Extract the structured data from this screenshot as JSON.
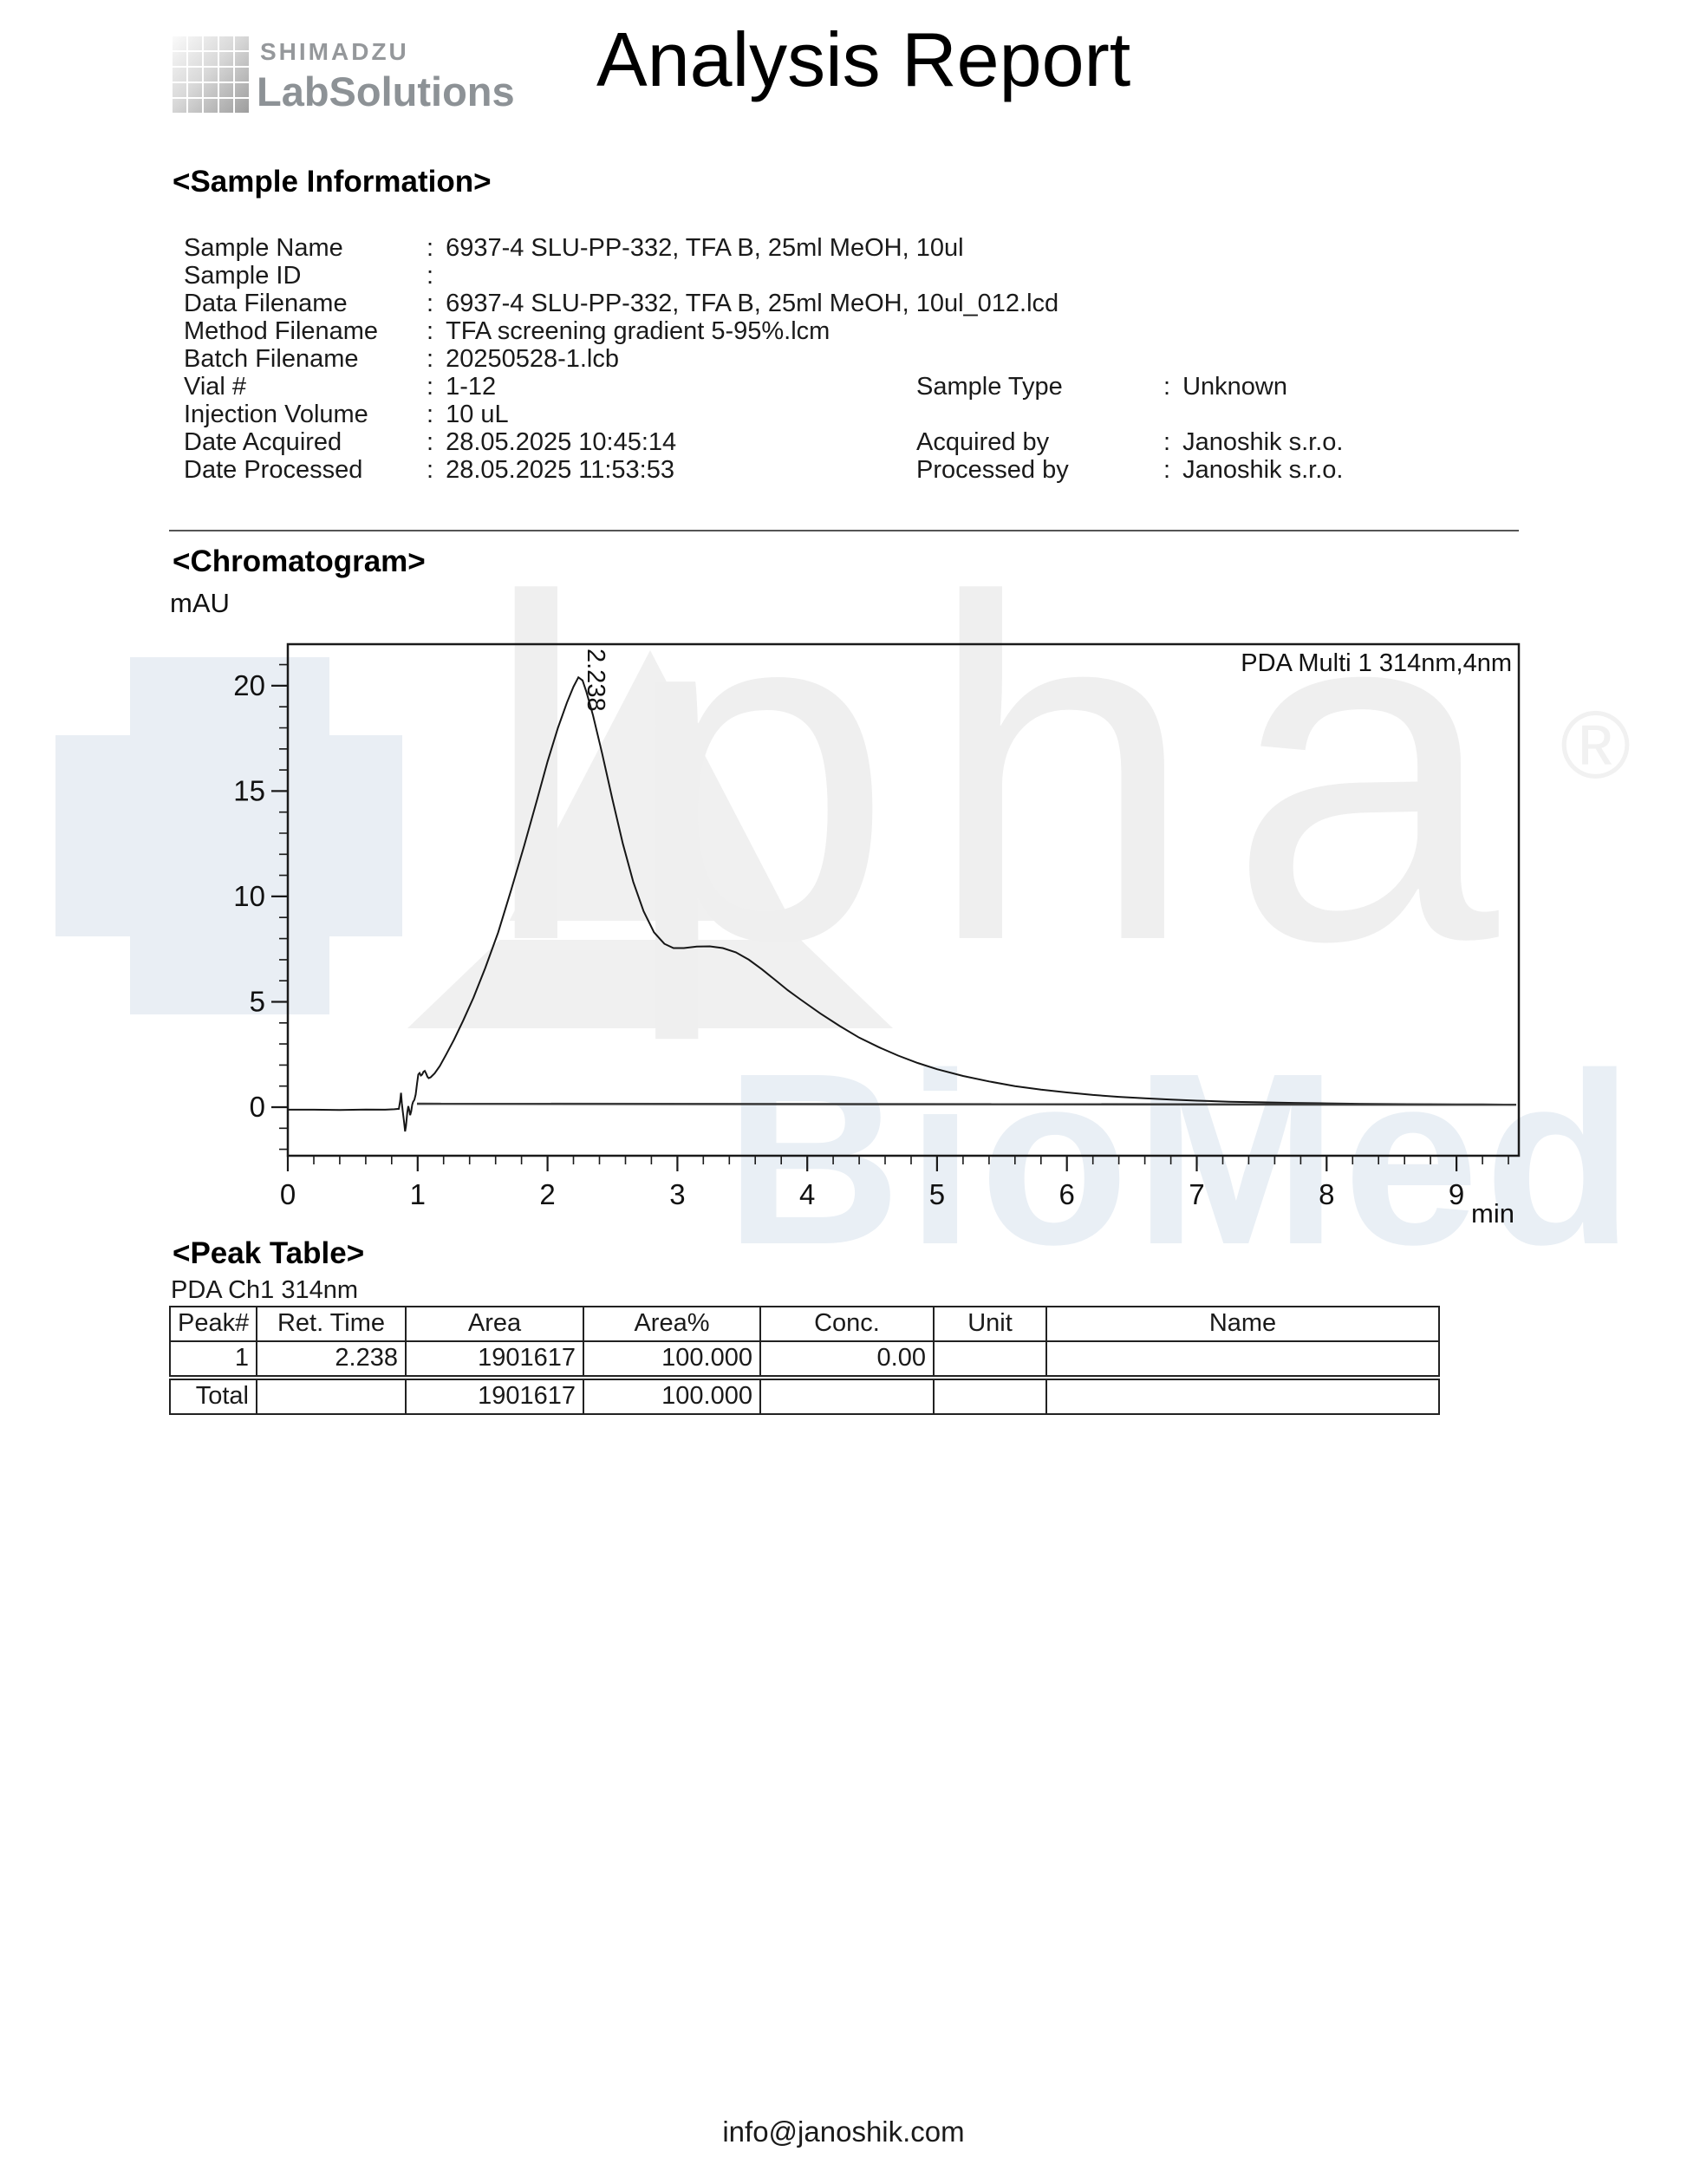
{
  "header": {
    "brand_line1": "SHIMADZU",
    "brand_line2": "LabSolutions",
    "title": "Analysis Report"
  },
  "punct": {
    "colon": ":"
  },
  "sample_information": {
    "section_title": "<Sample Information>",
    "rows": [
      {
        "label": "Sample Name",
        "value": "6937-4 SLU-PP-332, TFA B, 25ml MeOH, 10ul"
      },
      {
        "label": "Sample ID",
        "value": ""
      },
      {
        "label": "Data Filename",
        "value": "6937-4 SLU-PP-332, TFA B, 25ml MeOH, 10ul_012.lcd"
      },
      {
        "label": "Method Filename",
        "value": "TFA screening gradient 5-95%.lcm"
      },
      {
        "label": "Batch Filename",
        "value": "20250528-1.lcb"
      },
      {
        "label": "Vial #",
        "value": "1-12",
        "label2": "Sample Type",
        "value2": "Unknown"
      },
      {
        "label": "Injection Volume",
        "value": "10 uL"
      },
      {
        "label": "Date Acquired",
        "value": "28.05.2025 10:45:14",
        "label2": "Acquired by",
        "value2": "Janoshik s.r.o."
      },
      {
        "label": "Date Processed",
        "value": "28.05.2025 11:53:53",
        "label2": "Processed by",
        "value2": "Janoshik s.r.o."
      }
    ]
  },
  "chromatogram": {
    "section_title": "<Chromatogram>",
    "y_axis_unit": "mAU",
    "x_axis_unit": "min",
    "channel_label": "PDA Multi 1 314nm,4nm",
    "peak_label": "2.238"
  },
  "chart_data": {
    "type": "line",
    "title": "PDA Multi 1 314nm,4nm",
    "xlabel": "min",
    "ylabel": "mAU",
    "xlim": [
      0,
      9.48
    ],
    "ylim": [
      -2.3,
      21.97
    ],
    "x_major_ticks": [
      0,
      1,
      2,
      3,
      4,
      5,
      6,
      7,
      8,
      9
    ],
    "x_minor_step": 0.2,
    "y_major_ticks": [
      0,
      5,
      10,
      15,
      20
    ],
    "y_minor_step": 1,
    "grid": false,
    "legend_position": "none",
    "peaks": [
      {
        "ret_time": 2.238,
        "apex_mau": 20.4
      }
    ],
    "series": [
      {
        "name": "signal",
        "points": [
          [
            0,
            -0.12
          ],
          [
            0.2,
            -0.12
          ],
          [
            0.4,
            -0.13
          ],
          [
            0.6,
            -0.11
          ],
          [
            0.75,
            -0.12
          ],
          [
            0.82,
            -0.1
          ],
          [
            0.855,
            -0.08
          ],
          [
            0.865,
            0.3
          ],
          [
            0.872,
            0.68
          ],
          [
            0.878,
            0.2
          ],
          [
            0.885,
            -0.2
          ],
          [
            0.895,
            -0.7
          ],
          [
            0.903,
            -1.15
          ],
          [
            0.91,
            -0.9
          ],
          [
            0.92,
            -0.25
          ],
          [
            0.928,
            0.05
          ],
          [
            0.935,
            -0.15
          ],
          [
            0.942,
            -0.38
          ],
          [
            0.95,
            -0.2
          ],
          [
            0.958,
            0.12
          ],
          [
            0.965,
            0.25
          ],
          [
            0.975,
            0.35
          ],
          [
            0.985,
            0.6
          ],
          [
            0.995,
            1.1
          ],
          [
            1.005,
            1.55
          ],
          [
            1.015,
            1.62
          ],
          [
            1.025,
            1.5
          ],
          [
            1.035,
            1.55
          ],
          [
            1.045,
            1.68
          ],
          [
            1.055,
            1.72
          ],
          [
            1.065,
            1.6
          ],
          [
            1.075,
            1.45
          ],
          [
            1.085,
            1.38
          ],
          [
            1.1,
            1.42
          ],
          [
            1.13,
            1.6
          ],
          [
            1.17,
            1.95
          ],
          [
            1.22,
            2.5
          ],
          [
            1.28,
            3.2
          ],
          [
            1.35,
            4.1
          ],
          [
            1.43,
            5.2
          ],
          [
            1.52,
            6.6
          ],
          [
            1.62,
            8.3
          ],
          [
            1.72,
            10.3
          ],
          [
            1.82,
            12.4
          ],
          [
            1.92,
            14.6
          ],
          [
            2.0,
            16.4
          ],
          [
            2.08,
            18.0
          ],
          [
            2.15,
            19.2
          ],
          [
            2.2,
            19.95
          ],
          [
            2.238,
            20.4
          ],
          [
            2.27,
            20.25
          ],
          [
            2.3,
            19.7
          ],
          [
            2.35,
            18.6
          ],
          [
            2.42,
            16.8
          ],
          [
            2.5,
            14.6
          ],
          [
            2.58,
            12.5
          ],
          [
            2.66,
            10.7
          ],
          [
            2.74,
            9.3
          ],
          [
            2.82,
            8.3
          ],
          [
            2.9,
            7.75
          ],
          [
            2.97,
            7.55
          ],
          [
            3.05,
            7.55
          ],
          [
            3.15,
            7.62
          ],
          [
            3.25,
            7.63
          ],
          [
            3.35,
            7.55
          ],
          [
            3.45,
            7.35
          ],
          [
            3.55,
            7.0
          ],
          [
            3.65,
            6.55
          ],
          [
            3.75,
            6.05
          ],
          [
            3.85,
            5.55
          ],
          [
            3.95,
            5.1
          ],
          [
            4.1,
            4.45
          ],
          [
            4.25,
            3.85
          ],
          [
            4.4,
            3.3
          ],
          [
            4.55,
            2.85
          ],
          [
            4.7,
            2.45
          ],
          [
            4.85,
            2.1
          ],
          [
            5.0,
            1.8
          ],
          [
            5.2,
            1.48
          ],
          [
            5.4,
            1.22
          ],
          [
            5.6,
            1.0
          ],
          [
            5.8,
            0.83
          ],
          [
            6.0,
            0.7
          ],
          [
            6.2,
            0.58
          ],
          [
            6.4,
            0.49
          ],
          [
            6.6,
            0.42
          ],
          [
            6.8,
            0.36
          ],
          [
            7.0,
            0.31
          ],
          [
            7.25,
            0.26
          ],
          [
            7.5,
            0.23
          ],
          [
            7.75,
            0.2
          ],
          [
            8.0,
            0.18
          ],
          [
            8.25,
            0.16
          ],
          [
            8.5,
            0.15
          ],
          [
            8.75,
            0.14
          ],
          [
            9.0,
            0.13
          ],
          [
            9.2,
            0.13
          ],
          [
            9.45,
            0.12
          ]
        ]
      },
      {
        "name": "integration-baseline",
        "points": [
          [
            0.995,
            0.16
          ],
          [
            9.46,
            0.12
          ]
        ]
      }
    ]
  },
  "peak_table": {
    "section_title": "<Peak Table>",
    "channel": "PDA Ch1 314nm",
    "columns": [
      "Peak#",
      "Ret. Time",
      "Area",
      "Area%",
      "Conc.",
      "Unit",
      "Name"
    ],
    "rows": [
      [
        "1",
        "2.238",
        "1901617",
        "100.000",
        "0.00",
        "",
        ""
      ]
    ],
    "total_row": [
      "Total",
      "",
      "1901617",
      "100.000",
      "",
      "",
      ""
    ]
  },
  "watermark": {
    "alpha_text": "lpha",
    "registered": "®",
    "biomed_text": "BioMed"
  },
  "footer": {
    "email": "info@janoshik.com"
  },
  "colors": {
    "ink": "#1a1a1a",
    "brand_gray": "#8d9296",
    "watermark_gray": "#efefef",
    "watermark_blue": "#e9eff5",
    "table_border": "#222222"
  }
}
